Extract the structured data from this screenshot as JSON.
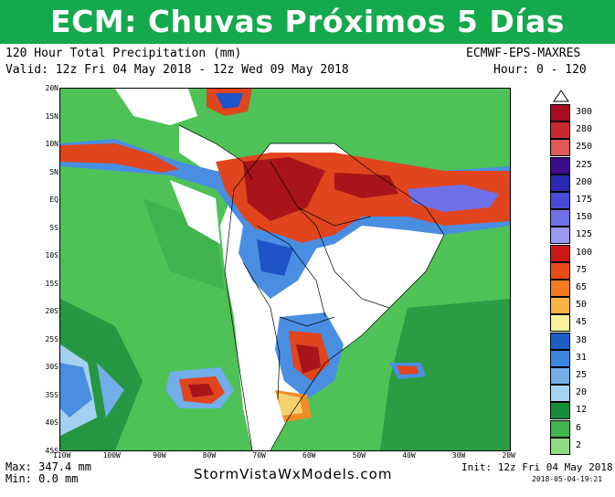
{
  "banner": {
    "title": "ECM: Chuvas Próximos 5 Días (mm)"
  },
  "header": {
    "product": "120 Hour Total Precipitation (mm)",
    "model": "ECMWF-EPS-MAXRES",
    "valid": "Valid: 12z Fri 04 May 2018 - 12z Wed 09 May 2018",
    "hour": "Hour: 0 - 120"
  },
  "map": {
    "lat_labels": [
      "20N",
      "15N",
      "10N",
      "5N",
      "EQ",
      "5S",
      "10S",
      "15S",
      "20S",
      "25S",
      "30S",
      "35S",
      "40S",
      "45S"
    ],
    "lon_labels": [
      "110W",
      "100W",
      "90W",
      "80W",
      "70W",
      "60W",
      "50W",
      "40W",
      "30W",
      "20W"
    ],
    "colors": {
      "ocean_light": "#4ec257",
      "ocean_dark": "#1c8c3c",
      "land_dry": "#ffffff",
      "light_blue": "#a3d1f0",
      "blue": "#4a8ee2",
      "dark_blue": "#2052c8",
      "yellow": "#f6f08a",
      "orange": "#f28c28",
      "red_orange": "#e0451e",
      "dark_red": "#a8141a"
    }
  },
  "colorbar": {
    "levels": [
      {
        "label": "300",
        "color": "#a80c1e"
      },
      {
        "label": "280",
        "color": "#c82830"
      },
      {
        "label": "250",
        "color": "#e05858"
      },
      {
        "label": "225",
        "color": "#3a0d8c"
      },
      {
        "label": "200",
        "color": "#2a2ab0"
      },
      {
        "label": "175",
        "color": "#4a4ad8"
      },
      {
        "label": "150",
        "color": "#7070e8"
      },
      {
        "label": "125",
        "color": "#9a9af0"
      },
      {
        "label": "100",
        "color": "#cc1818"
      },
      {
        "label": "75",
        "color": "#ea4a1a"
      },
      {
        "label": "65",
        "color": "#f57a22"
      },
      {
        "label": "50",
        "color": "#f9b444"
      },
      {
        "label": "45",
        "color": "#f7f19a"
      },
      {
        "label": "38",
        "color": "#1e5ec8"
      },
      {
        "label": "31",
        "color": "#3f86e0"
      },
      {
        "label": "25",
        "color": "#72aeea"
      },
      {
        "label": "20",
        "color": "#a8d4f4"
      },
      {
        "label": "12",
        "color": "#168c3a"
      },
      {
        "label": "6",
        "color": "#3fb44e"
      },
      {
        "label": "2",
        "color": "#8fdc84"
      }
    ]
  },
  "footer": {
    "max": "Max: 347.4 mm",
    "min": "Min: 0.0 mm",
    "site": "StormVistaWxModels.com",
    "init": "Init: 12z Fri 04 May 2018",
    "stamp": "2018-05-04-19:21"
  }
}
